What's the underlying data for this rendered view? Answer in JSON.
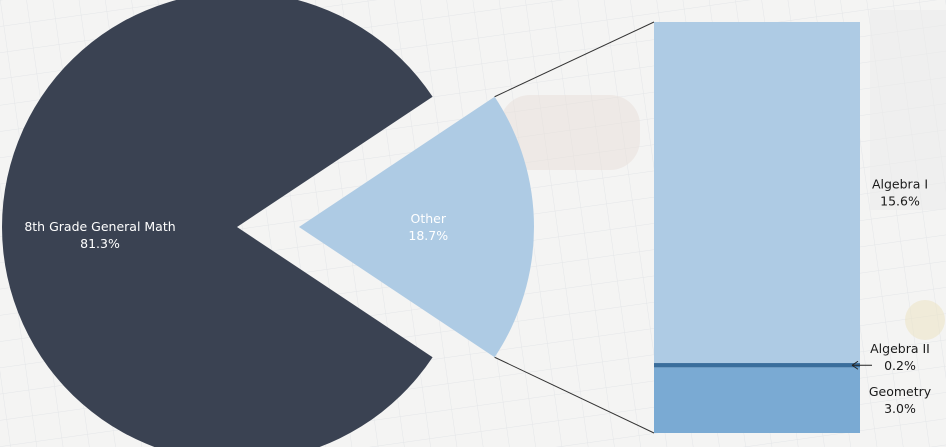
{
  "chart_data": {
    "type": "pie",
    "subtype": "bar-of-pie",
    "pie": {
      "slices": [
        {
          "label": "8th Grade General Math",
          "value": 81.3,
          "value_label": "81.3%",
          "color": "#3a4252"
        },
        {
          "label": "Other",
          "value": 18.7,
          "value_label": "18.7%",
          "color": "#aecbe4",
          "exploded": true
        }
      ]
    },
    "breakdown": {
      "parent": "Other",
      "segments": [
        {
          "label": "Algebra I",
          "value": 15.6,
          "value_label": "15.6%",
          "color": "#aecbe4"
        },
        {
          "label": "Algebra II",
          "value": 0.2,
          "value_label": "0.2%",
          "color": "#3a6e9c",
          "callout": "arrow"
        },
        {
          "label": "Geometry",
          "value": 3.0,
          "value_label": "3.0%",
          "color": "#7aaad3"
        }
      ]
    },
    "title": "",
    "legend": "none"
  }
}
